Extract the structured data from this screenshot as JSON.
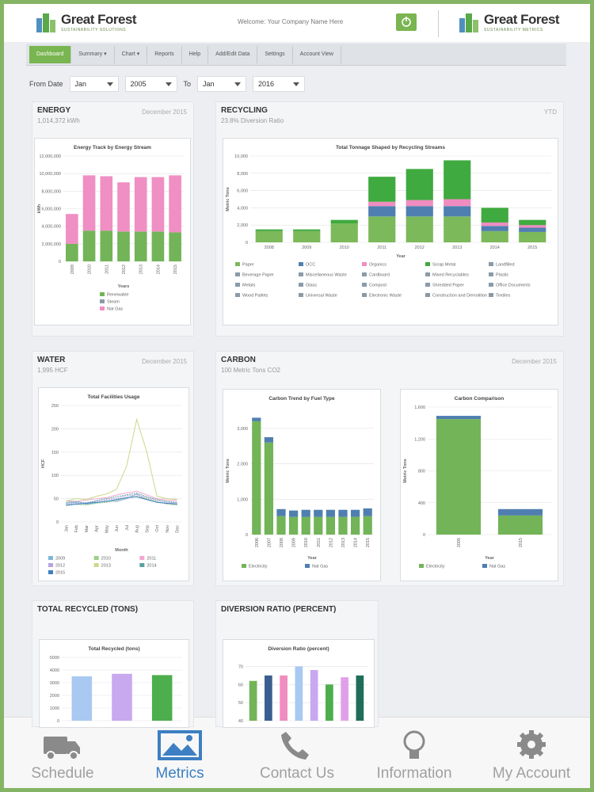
{
  "header": {
    "logo_left": {
      "name": "Great Forest",
      "tagline": "SUSTAINABILITY SOLUTIONS"
    },
    "welcome": "Welcome: Your Company Name Here",
    "logo_right": {
      "name": "Great Forest",
      "tagline": "SUSTAINABILITY METRICS"
    }
  },
  "nav": {
    "tabs": [
      "Dashboard",
      "Summary ▾",
      "Chart ▾",
      "Reports",
      "Help",
      "Add/Edit Data",
      "Settings",
      "Account View"
    ]
  },
  "filters": {
    "from_label": "From Date",
    "from_month": "Jan",
    "from_year": "2005",
    "to_label": "To",
    "to_month": "Jan",
    "to_year": "2016"
  },
  "panels": [
    {
      "title": "ENERGY",
      "subtitle": "1,014,372 kWh",
      "period": "December 2015",
      "charts": [
        {
          "type": "bar",
          "title": "Energy Track by Energy Stream",
          "x_label": "Years",
          "y_label": "kWh",
          "grid": true,
          "categories": [
            "2009",
            "2010",
            "2011",
            "2012",
            "2013",
            "2014",
            "2015"
          ],
          "ylim": [
            0,
            12000000
          ],
          "yticks": [
            0,
            {
              "value": 2000000,
              "label": "2,000,000"
            },
            {
              "value": 4000000,
              "label": "4,000,000"
            },
            {
              "value": 6000000,
              "label": "6,000,000"
            },
            {
              "value": 8000000,
              "label": "8,000,000"
            },
            {
              "value": 10000000,
              "label": "10,000,000"
            },
            {
              "value": 12000000,
              "label": "12,000,000"
            }
          ],
          "series": [
            {
              "name": "Renewable",
              "color": "#72b457",
              "values": [
                2000000,
                3500000,
                3500000,
                3400000,
                3400000,
                3400000,
                3300000
              ]
            },
            {
              "name": "Steam",
              "color": "#8a9aa8",
              "values": [
                0,
                0,
                0,
                0,
                0,
                0,
                0
              ]
            },
            {
              "name": "Nat Gas",
              "color": "#ef8fc3",
              "values": [
                3400000,
                6300000,
                6200000,
                5600000,
                6200000,
                6200000,
                6500000
              ]
            }
          ]
        }
      ]
    },
    {
      "title": "RECYCLING",
      "subtitle": "23.8% Diversion Ratio",
      "period": "YTD",
      "charts": [
        {
          "type": "bar",
          "title": "Total Tonnage Shaped by Recycling Streams",
          "x_label": "Year",
          "y_label": "Metric Tons",
          "grid": true,
          "categories": [
            "2008",
            "2009",
            "2010",
            "2011",
            "2012",
            "2013",
            "2014",
            "2015"
          ],
          "ylim": [
            0,
            10000
          ],
          "yticks": [
            0,
            {
              "value": 2000,
              "label": "2,000"
            },
            {
              "value": 4000,
              "label": "4,000"
            },
            {
              "value": 6000,
              "label": "6,000"
            },
            {
              "value": 8000,
              "label": "8,000"
            },
            {
              "value": 10000,
              "label": "10,000"
            }
          ],
          "series": [
            {
              "name": "Paper",
              "color": "#7cb95a",
              "values": [
                1300,
                1300,
                2200,
                3000,
                3000,
                3000,
                1300,
                1200
              ]
            },
            {
              "name": "OCC",
              "color": "#4f7fb0",
              "values": [
                0,
                0,
                0,
                1200,
                1200,
                1200,
                600,
                500
              ]
            },
            {
              "name": "Organics",
              "color": "#f08cc0",
              "values": [
                0,
                0,
                0,
                500,
                700,
                800,
                400,
                300
              ]
            },
            {
              "name": "Scrap Metal",
              "color": "#3faa3f",
              "values": [
                200,
                200,
                400,
                2900,
                3600,
                4500,
                1700,
                600
              ]
            }
          ],
          "other_streams": [
            "Landfilled",
            "Beverage Paper",
            "Miscellaneous Waste",
            "Cardboard",
            "Mixed Recyclables",
            "Plastic",
            "Metals",
            "Glass",
            "Compost",
            "Shredded Paper",
            "Office Documents",
            "Wood Pallets",
            "Universal Waste",
            "Electronic Waste",
            "Construction and Demolition",
            "Textiles"
          ]
        }
      ]
    },
    {
      "title": "WATER",
      "subtitle": "1,995 HCF",
      "period": "December 2015",
      "charts": [
        {
          "type": "line",
          "title": "Total Facilities Usage",
          "x_label": "Month",
          "y_label": "HCF",
          "grid": true,
          "categories": [
            "Jan",
            "Feb",
            "Mar",
            "Apr",
            "May",
            "Jun",
            "Jul",
            "Aug",
            "Sep",
            "Oct",
            "Nov",
            "Dec"
          ],
          "ylim": [
            0,
            250
          ],
          "yticks": [
            0,
            50,
            100,
            150,
            200,
            250
          ],
          "series": [
            {
              "name": "2009",
              "color": "#7fb6d8",
              "values": [
                40,
                42,
                38,
                41,
                45,
                44,
                50,
                60,
                48,
                42,
                40,
                41
              ]
            },
            {
              "name": "2010",
              "color": "#9ccf8a",
              "values": [
                35,
                38,
                36,
                40,
                42,
                46,
                52,
                55,
                50,
                44,
                38,
                36
              ]
            },
            {
              "name": "2011",
              "color": "#f2a6cf",
              "values": [
                45,
                44,
                47,
                50,
                52,
                58,
                62,
                66,
                58,
                50,
                47,
                46
              ]
            },
            {
              "name": "2012",
              "color": "#b8a3e0",
              "values": [
                38,
                40,
                42,
                44,
                48,
                50,
                56,
                58,
                52,
                46,
                42,
                40
              ]
            },
            {
              "name": "2013",
              "color": "#c9d98a",
              "values": [
                45,
                50,
                48,
                55,
                60,
                70,
                120,
                220,
                150,
                55,
                50,
                48
              ]
            },
            {
              "name": "2014",
              "color": "#5aa0a0",
              "values": [
                42,
                44,
                40,
                46,
                50,
                54,
                58,
                62,
                54,
                48,
                44,
                42
              ]
            },
            {
              "name": "2015",
              "color": "#3f7fbf",
              "values": [
                36,
                38,
                40,
                42,
                44,
                48,
                52,
                54,
                48,
                42,
                40,
                38
              ]
            }
          ]
        }
      ]
    },
    {
      "title": "CARBON",
      "subtitle": "100 Metric Tons CO2",
      "period": "December 2015",
      "charts": [
        {
          "type": "bar",
          "title": "Carbon Trend by Fuel Type",
          "x_label": "Year",
          "y_label": "Metric Tons",
          "grid": true,
          "categories": [
            "2006",
            "2007",
            "2008",
            "2009",
            "2010",
            "2011",
            "2012",
            "2013",
            "2014",
            "2015"
          ],
          "ylim": [
            0,
            3600
          ],
          "yticks": [
            0,
            {
              "value": 1000,
              "label": "1,000"
            },
            {
              "value": 2000,
              "label": "2,000"
            },
            {
              "value": 3000,
              "label": "3,000"
            }
          ],
          "series": [
            {
              "name": "Electricity",
              "color": "#72b457",
              "values": [
                3200,
                2600,
                520,
                500,
                500,
                500,
                500,
                500,
                500,
                520
              ]
            },
            {
              "name": "Nat Gas",
              "color": "#4f7fb0",
              "values": [
                100,
                150,
                200,
                180,
                200,
                200,
                200,
                200,
                200,
                220
              ]
            }
          ]
        },
        {
          "type": "bar",
          "title": "Carbon Comparison",
          "x_label": "Year",
          "y_label": "Metric Tons",
          "grid": true,
          "categories": [
            "2005",
            "2015"
          ],
          "ylim": [
            0,
            1600
          ],
          "yticks": [
            0,
            400,
            800,
            {
              "value": 1200,
              "label": "1,200"
            },
            {
              "value": 1600,
              "label": "1,600"
            }
          ],
          "series": [
            {
              "name": "Electricity",
              "color": "#72b457",
              "values": [
                1450,
                240
              ]
            },
            {
              "name": "Nat Gas",
              "color": "#4f7fb0",
              "values": [
                40,
                80
              ]
            }
          ]
        }
      ]
    },
    {
      "title": "TOTAL RECYCLED (TONS)",
      "charts": [
        {
          "type": "bar",
          "title": "Total Recycled (tons)",
          "grid": true,
          "categories": [
            null,
            null,
            null
          ],
          "ylim": [
            0,
            5000
          ],
          "yticks": [
            0,
            1000,
            2000,
            3000,
            4000,
            5000
          ],
          "values": [
            3500,
            3700,
            3600
          ],
          "colors": [
            "#a9c9f2",
            "#c8a8ef",
            "#4cae4c"
          ]
        }
      ]
    },
    {
      "title": "DIVERSION RATIO (PERCENT)",
      "charts": [
        {
          "type": "bar",
          "title": "Diversion Ratio (percent)",
          "grid": true,
          "categories": [
            null,
            null,
            null,
            null,
            null,
            null,
            null,
            null
          ],
          "ylim": [
            40,
            75
          ],
          "yticks": [
            40,
            50,
            60,
            70
          ],
          "values": [
            62,
            65,
            65,
            70,
            68,
            60,
            64,
            65
          ],
          "colors": [
            "#72b457",
            "#3a5f8f",
            "#f08cc0",
            "#a9c9f2",
            "#c8a8ef",
            "#4cae4c",
            "#e0a0e8",
            "#1f6e58"
          ]
        }
      ]
    }
  ],
  "tabbar": {
    "tabs": [
      "Schedule",
      "Metrics",
      "Contact Us",
      "Information",
      "My Account"
    ]
  }
}
